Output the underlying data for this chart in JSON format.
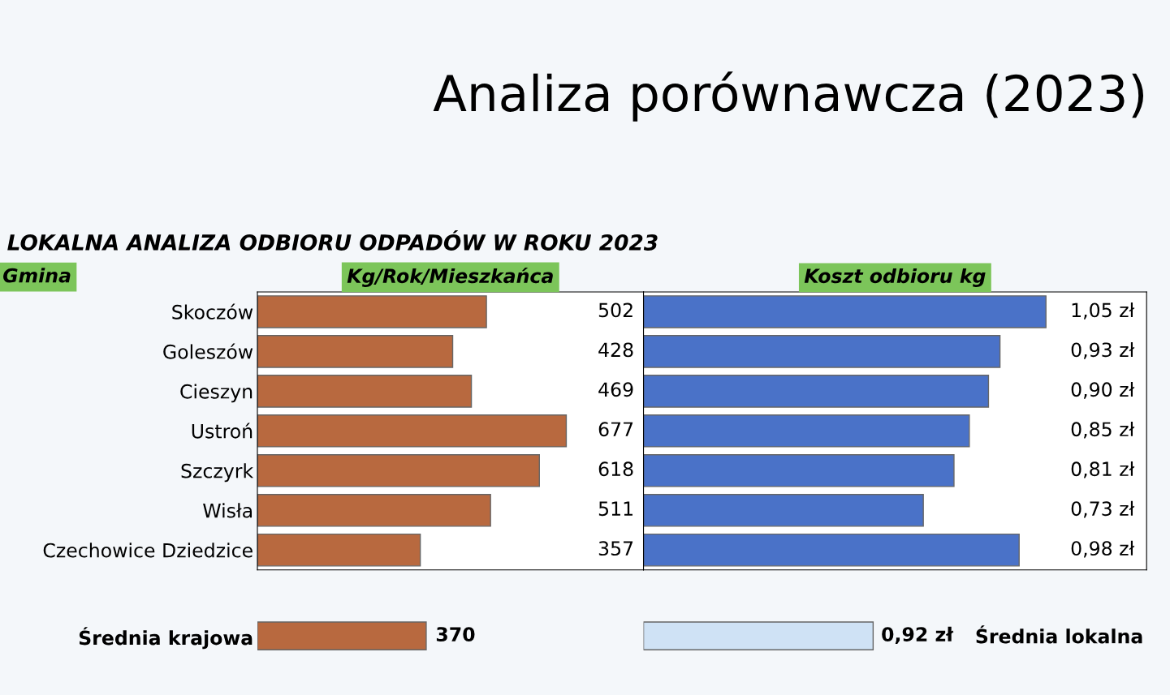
{
  "chart_data": [
    {
      "type": "bar",
      "orientation": "horizontal",
      "title": "Analiza porównawcza (2023)",
      "subtitle": "LOKALNA ANALIZA ODBIORU ODPADÓW W ROKU 2023",
      "xlabel": "Kg/Rok/Mieszkańca",
      "ylabel": "Gmina",
      "categories": [
        "Skoczów",
        "Goleszów",
        "Cieszyn",
        "Ustroń",
        "Szczyrk",
        "Wisła",
        "Czechowice Dziedzice"
      ],
      "values": [
        502,
        428,
        469,
        677,
        618,
        511,
        357
      ],
      "color": "#b8693f",
      "data_labels": true,
      "tick_labels": "y"
    },
    {
      "type": "bar",
      "orientation": "horizontal",
      "xlabel": "Koszt odbioru kg",
      "categories": [
        null,
        null,
        null,
        null,
        null,
        null,
        null
      ],
      "values": [
        1.05,
        0.93,
        0.9,
        0.85,
        0.81,
        0.73,
        0.98
      ],
      "color": "#4a72c8",
      "value_labels": [
        "1,05 zł",
        "0,93 zł",
        "0,90 zł",
        "0,85 zł",
        "0,81 zł",
        "0,73 zł",
        "0,98 zł"
      ],
      "tick_labels": false
    },
    {
      "type": "bar",
      "orientation": "horizontal",
      "categories": [
        "Średnia krajowa"
      ],
      "values": [
        370
      ],
      "color": "#b8693f",
      "data_labels": true,
      "tick_labels": "y"
    },
    {
      "type": "bar",
      "orientation": "horizontal",
      "categories": [
        "Średnia lokalna"
      ],
      "values": [
        0.92
      ],
      "color": "#cfe2f5",
      "value_labels": [
        "0,92 zł"
      ],
      "tick_labels": "y"
    }
  ]
}
